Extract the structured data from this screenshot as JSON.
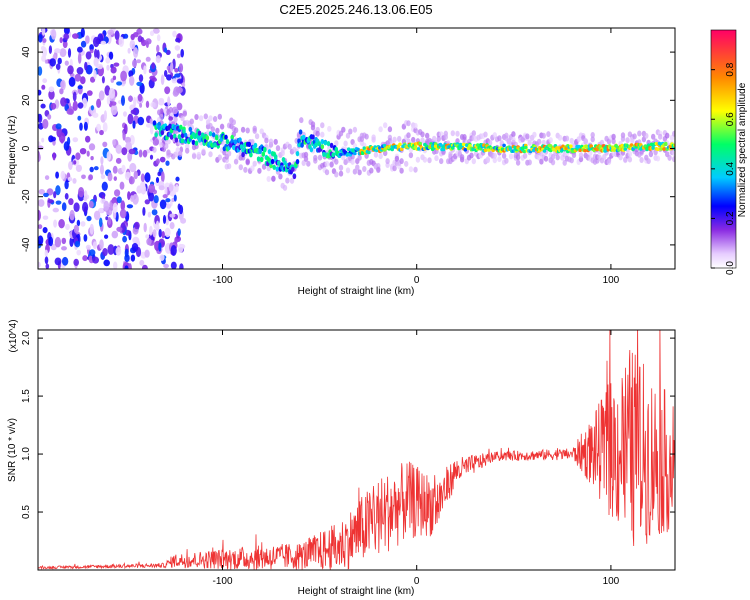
{
  "title": "C2E5.2025.246.13.06.E05",
  "chart_data": [
    {
      "type": "heatmap",
      "name": "spectrogram",
      "xlabel": "Height of straight line (km)",
      "ylabel": "Frequency (Hz)",
      "xlim": [
        -195,
        133
      ],
      "ylim": [
        -50,
        50
      ],
      "xticks": [
        -100,
        0,
        100
      ],
      "yticks": [
        -40,
        -20,
        0,
        20,
        40
      ],
      "colorbar": {
        "label": "Normalized spectral amplitude",
        "range": [
          0,
          0.96
        ],
        "ticks": [
          0.0,
          0.2,
          0.4,
          0.6,
          0.8
        ],
        "tick_labels": [
          "0.0",
          "0.2",
          "0.4",
          "0.6",
          "0.8"
        ]
      },
      "features": {
        "noise_region_x": [
          -195,
          -135
        ],
        "signal_onset_x": -135,
        "ridge": [
          {
            "x": -135,
            "f": 8
          },
          {
            "x": -100,
            "f": 3
          },
          {
            "x": -80,
            "f": -2
          },
          {
            "x": -63,
            "f": -10
          },
          {
            "x": -60,
            "f": 4
          },
          {
            "x": -40,
            "f": -2
          },
          {
            "x": -20,
            "f": 0
          },
          {
            "x": 0,
            "f": 1
          },
          {
            "x": 50,
            "f": 0
          },
          {
            "x": 100,
            "f": 0
          },
          {
            "x": 130,
            "f": 1
          }
        ]
      }
    },
    {
      "type": "line",
      "name": "snr",
      "xlabel": "Height of straight line (km)",
      "ylabel": "SNR (10 * v/v)",
      "y_multiplier": "(x10^4)",
      "xlim": [
        -195,
        133
      ],
      "ylim": [
        0,
        2.07
      ],
      "xticks": [
        -100,
        0,
        100
      ],
      "yticks": [
        0.5,
        1.0,
        1.5,
        2.0
      ],
      "ytick_labels": [
        "0.5",
        "1.0",
        "1.5",
        "2.0"
      ],
      "color": "#ee3333",
      "envelope": [
        {
          "x": -195,
          "y": 0.02,
          "noise": 0.01
        },
        {
          "x": -130,
          "y": 0.04,
          "noise": 0.02
        },
        {
          "x": -125,
          "y": 0.08,
          "noise": 0.06
        },
        {
          "x": -90,
          "y": 0.1,
          "noise": 0.1
        },
        {
          "x": -60,
          "y": 0.12,
          "noise": 0.12
        },
        {
          "x": -40,
          "y": 0.2,
          "noise": 0.22
        },
        {
          "x": -20,
          "y": 0.45,
          "noise": 0.35
        },
        {
          "x": -5,
          "y": 0.6,
          "noise": 0.35
        },
        {
          "x": 10,
          "y": 0.55,
          "noise": 0.25
        },
        {
          "x": 20,
          "y": 0.85,
          "noise": 0.12
        },
        {
          "x": 40,
          "y": 0.98,
          "noise": 0.04
        },
        {
          "x": 80,
          "y": 1.0,
          "noise": 0.05
        },
        {
          "x": 90,
          "y": 1.02,
          "noise": 0.3
        },
        {
          "x": 110,
          "y": 1.05,
          "noise": 0.9
        },
        {
          "x": 133,
          "y": 0.9,
          "noise": 0.55
        }
      ]
    }
  ]
}
